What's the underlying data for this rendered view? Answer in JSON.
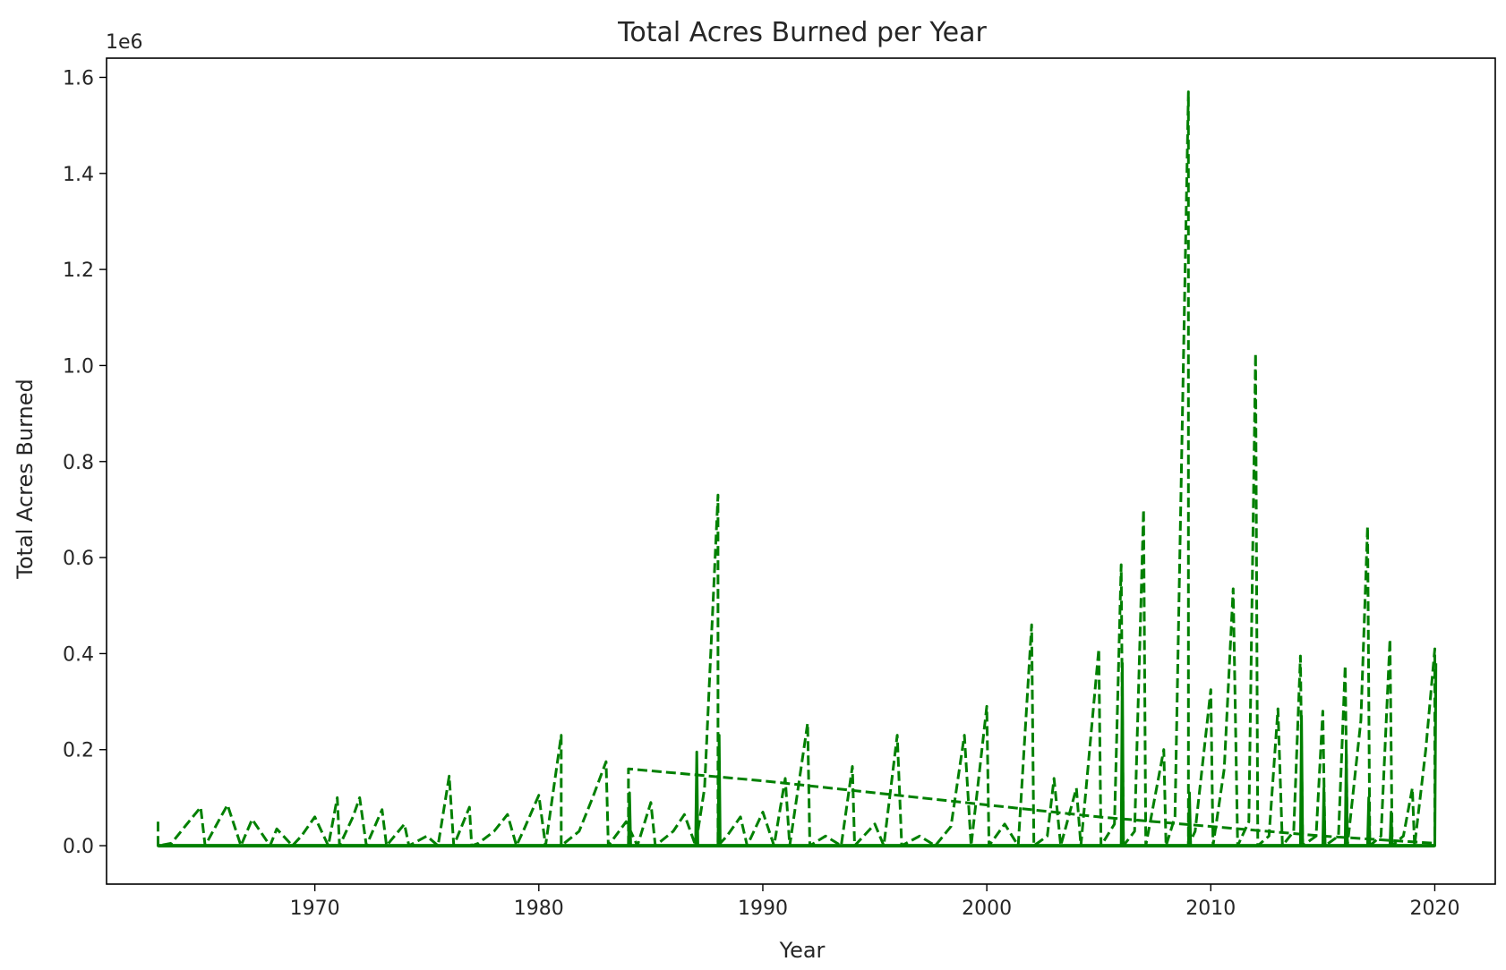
{
  "chart_data": {
    "type": "line",
    "title": "Total Acres Burned per Year",
    "xlabel": "Year",
    "ylabel": "Total Acres Burned",
    "y_offset_label": "1e6",
    "xlim": [
      1960.7,
      2022.7
    ],
    "ylim": [
      -80000,
      1640000
    ],
    "x_ticks": [
      1970,
      1980,
      1990,
      2000,
      2010,
      2020
    ],
    "y_ticks": [
      0,
      200000,
      400000,
      600000,
      800000,
      1000000,
      1200000,
      1400000,
      1600000
    ],
    "y_tick_labels": [
      "0.0",
      "0.2",
      "0.4",
      "0.6",
      "0.8",
      "1.0",
      "1.2",
      "1.4",
      "1.6"
    ],
    "x_tick_labels": [
      "1970",
      "1980",
      "1990",
      "2000",
      "2010",
      "2020"
    ],
    "grid": false,
    "color": "#008000",
    "series": [
      {
        "style": "dashed",
        "x": [
          1963,
          1963,
          1963.6,
          1964.2,
          1964.9,
          1965.1,
          1965.8,
          1966.1,
          1966.7,
          1967.2,
          1968.0,
          1968.3,
          1969.0,
          1969.4,
          1970.0,
          1970.6,
          1971.0,
          1971.1,
          1971.7,
          1972.0,
          1972.3,
          1973.0,
          1973.2,
          1974.0,
          1974.2,
          1975.0,
          1975.5,
          1976.0,
          1976.2,
          1976.9,
          1977.0,
          1977.3,
          1978.0,
          1978.6,
          1979.0,
          1979.3,
          1980.0,
          1980.3,
          1981.0,
          1981.0,
          1981.8,
          1982.4,
          1983.0,
          1983.1,
          1983.9,
          1984.4,
          1985.0,
          1985.2,
          1986.0,
          1986.5,
          1987.0,
          1987.4,
          1988.0,
          1988.0,
          1988.4,
          1989.0,
          1989.3,
          1990.0,
          1990.5,
          1991.0,
          1991.2,
          1992.0,
          1992.1,
          1992.8,
          1993.5,
          1994.0,
          1994.1,
          1995.0,
          1995.4,
          1996.0,
          1996.2,
          1997.0,
          1997.7,
          1998.4,
          1999.0,
          1999.3,
          2000.0,
          2000.1,
          2000.8,
          2001.4,
          2002.0,
          2002.1,
          2002.7,
          2003.0,
          2003.3,
          2004.0,
          2004.2,
          2005.0,
          2005.1,
          2005.7,
          2006.0,
          2006.1,
          2006.6,
          2007.0,
          2007.1,
          2007.9,
          2008.0,
          2008.4,
          2009.0,
          2009.0,
          2009.3,
          2010.0,
          2010.1,
          2010.6,
          2011.0,
          2011.2,
          2011.7,
          2012.0,
          2012.1,
          2012.6,
          2013.0,
          2013.2,
          2013.7,
          2014.0,
          2014.1,
          2014.7,
          2015.0,
          2015.1,
          2015.7,
          2016.0,
          2016.1,
          2016.7,
          2017.0,
          2017.1,
          2017.6,
          2018.0,
          2018.1,
          2018.6,
          2019.0,
          2019.1,
          2019.6,
          2020.0,
          2020.0
        ],
        "y": [
          50000,
          0,
          5000,
          40000,
          80000,
          0,
          60000,
          85000,
          0,
          55000,
          0,
          35000,
          0,
          20000,
          60000,
          0,
          100000,
          0,
          60000,
          100000,
          0,
          75000,
          0,
          45000,
          0,
          20000,
          0,
          145000,
          0,
          80000,
          0,
          5000,
          30000,
          65000,
          0,
          30000,
          105000,
          0,
          230000,
          0,
          30000,
          100000,
          175000,
          0,
          50000,
          0,
          90000,
          0,
          30000,
          65000,
          0,
          120000,
          730000,
          0,
          20000,
          60000,
          0,
          70000,
          0,
          140000,
          0,
          255000,
          0,
          20000,
          0,
          165000,
          0,
          45000,
          0,
          230000,
          0,
          20000,
          0,
          40000,
          230000,
          0,
          290000,
          0,
          45000,
          0,
          460000,
          0,
          20000,
          140000,
          0,
          120000,
          0,
          410000,
          0,
          45000,
          585000,
          0,
          30000,
          700000,
          0,
          200000,
          0,
          60000,
          1570000,
          0,
          30000,
          325000,
          0,
          160000,
          535000,
          0,
          50000,
          1025000,
          0,
          20000,
          285000,
          0,
          30000,
          395000,
          0,
          20000,
          280000,
          0,
          20000,
          375000,
          0,
          260000,
          665000,
          0,
          20000,
          430000,
          0,
          20000,
          120000,
          0,
          200000,
          410000,
          0
        ]
      },
      {
        "style": "dashed",
        "x": [
          1984,
          1984,
          1990,
          1995,
          2000,
          2005,
          2010,
          2015,
          2020
        ],
        "y": [
          0,
          160000,
          135000,
          110000,
          85000,
          60000,
          40000,
          20000,
          5000
        ]
      },
      {
        "style": "solid",
        "x": [
          1963,
          1984,
          1984.05,
          1984.1,
          1987,
          1987.05,
          1987.1,
          1988,
          1988.05,
          1988.1,
          2006,
          2006.05,
          2006.1,
          2009,
          2009.05,
          2009.1,
          2014,
          2014.05,
          2014.1,
          2015,
          2015.05,
          2015.1,
          2016,
          2016.05,
          2016.1,
          2017,
          2017.05,
          2017.1,
          2018,
          2018.05,
          2018.1,
          2020,
          2020.05
        ],
        "y": [
          0,
          0,
          110000,
          0,
          0,
          195000,
          0,
          0,
          230000,
          0,
          0,
          380000,
          0,
          0,
          110000,
          0,
          0,
          270000,
          0,
          0,
          120000,
          0,
          0,
          200000,
          0,
          0,
          100000,
          0,
          0,
          70000,
          0,
          0,
          380000
        ]
      }
    ]
  }
}
